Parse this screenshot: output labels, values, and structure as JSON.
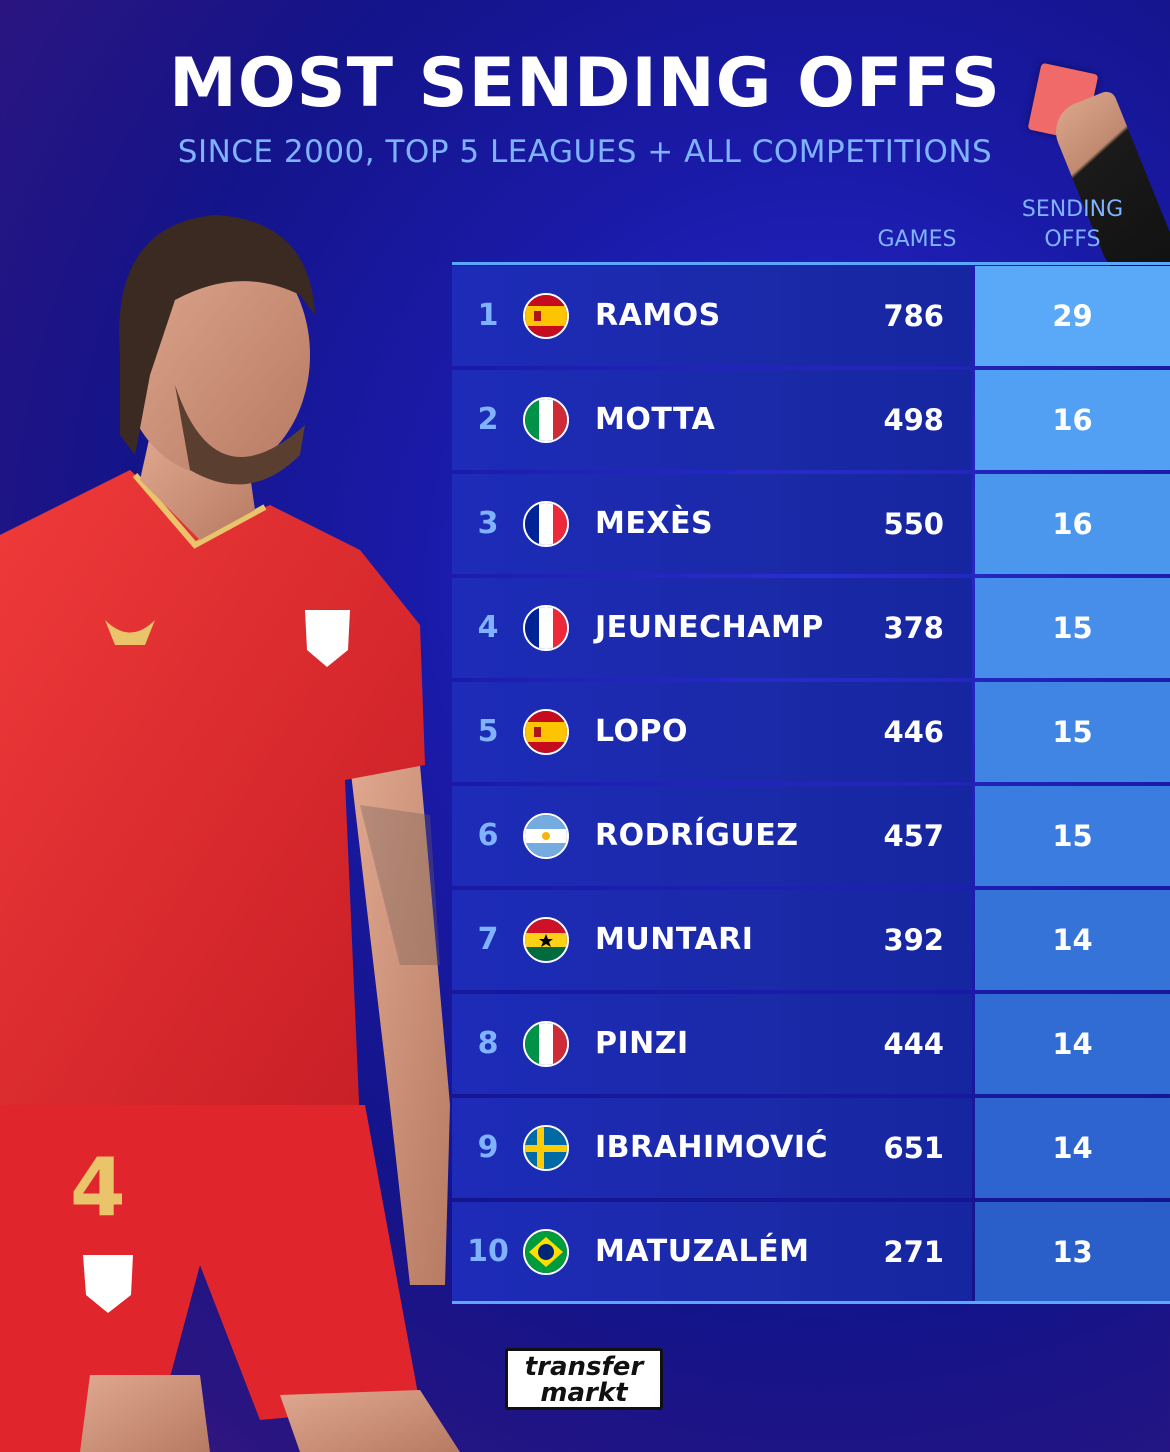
{
  "header": {
    "title": "MOST SENDING OFFS",
    "subtitle": "SINCE 2000, TOP 5 LEAGUES + ALL COMPETITIONS"
  },
  "columns": {
    "games": "GAMES",
    "sending_offs_line1": "SENDING",
    "sending_offs_line2": "OFFS"
  },
  "rows": [
    {
      "rank": "1",
      "flag": "spain-flag-icon",
      "name": "RAMOS",
      "games": "786",
      "sending_offs": "29"
    },
    {
      "rank": "2",
      "flag": "italy-flag-icon",
      "name": "MOTTA",
      "games": "498",
      "sending_offs": "16"
    },
    {
      "rank": "3",
      "flag": "france-flag-icon",
      "name": "MEXÈS",
      "games": "550",
      "sending_offs": "16"
    },
    {
      "rank": "4",
      "flag": "france-flag-icon",
      "name": "JEUNECHAMP",
      "games": "378",
      "sending_offs": "15"
    },
    {
      "rank": "5",
      "flag": "spain-flag-icon",
      "name": "LOPO",
      "games": "446",
      "sending_offs": "15"
    },
    {
      "rank": "6",
      "flag": "argentina-flag-icon",
      "name": "RODRÍGUEZ",
      "games": "457",
      "sending_offs": "15"
    },
    {
      "rank": "7",
      "flag": "ghana-flag-icon",
      "name": "MUNTARI",
      "games": "392",
      "sending_offs": "14"
    },
    {
      "rank": "8",
      "flag": "italy-flag-icon",
      "name": "PINZI",
      "games": "444",
      "sending_offs": "14"
    },
    {
      "rank": "9",
      "flag": "sweden-flag-icon",
      "name": "IBRAHIMOVIĆ",
      "games": "651",
      "sending_offs": "14"
    },
    {
      "rank": "10",
      "flag": "brazil-flag-icon",
      "name": "MATUZALÉM",
      "games": "271",
      "sending_offs": "13"
    }
  ],
  "logo": {
    "line1": "transfer",
    "line2": "markt"
  },
  "player_shirt_number": "4",
  "colors": {
    "accent": "#7fb3ff",
    "so_column_top": "#5aa9f8",
    "so_column_bottom": "#3565d0",
    "shirt": "#e8292e"
  }
}
